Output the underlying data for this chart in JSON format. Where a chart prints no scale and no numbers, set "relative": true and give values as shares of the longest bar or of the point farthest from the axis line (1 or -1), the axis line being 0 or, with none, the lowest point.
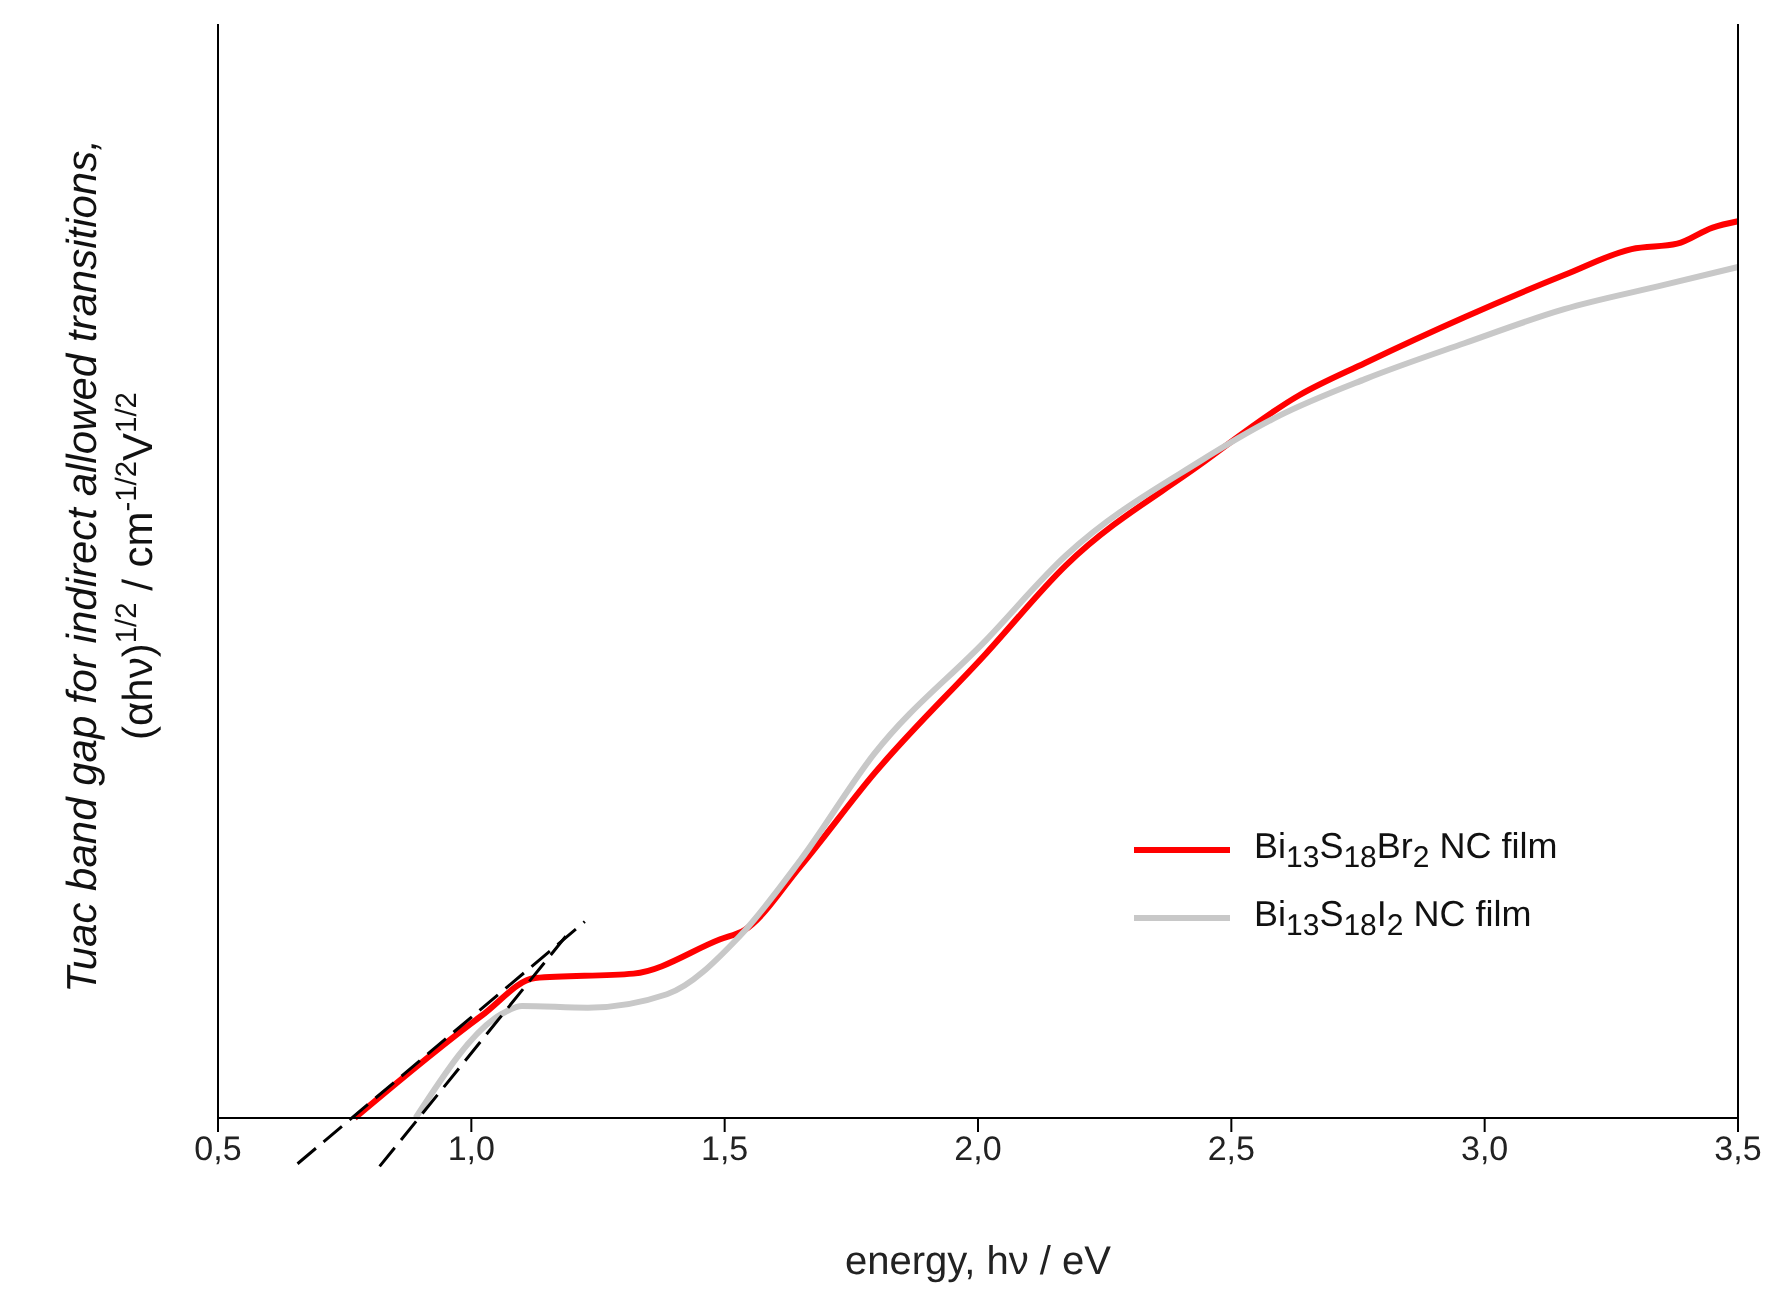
{
  "chart_data": {
    "type": "line",
    "relative": true,
    "xlabel": "energy, hν / eV",
    "ylabel": "Tuac band gap for indirect allowed transitions, (αhν)$^{1/2}$ / cm$^{-1/2}$V$^{1/2}$",
    "xlim": [
      0.5,
      3.5
    ],
    "xticks": [
      {
        "value": 0.5,
        "label": "0,5"
      },
      {
        "value": 1.0,
        "label": "1,0"
      },
      {
        "value": 1.5,
        "label": "1,5"
      },
      {
        "value": 2.0,
        "label": "2,0"
      },
      {
        "value": 2.5,
        "label": "2,5"
      },
      {
        "value": 3.0,
        "label": "3,0"
      },
      {
        "value": 3.5,
        "label": "3,5"
      }
    ],
    "legend": "right",
    "grid": false,
    "marker": "none",
    "series": [
      {
        "name": "Bi$_{13}$S$_{18}$Br$_{2}$ NC film",
        "color": "#ff0000",
        "x": [
          0.77,
          1.02,
          1.126,
          1.32,
          1.49,
          1.54,
          1.65,
          1.795,
          2.016,
          2.173,
          2.437,
          2.634,
          2.764,
          2.96,
          3.157,
          3.29,
          3.38,
          3.45,
          3.5
        ],
        "values": [
          0.0,
          0.114,
          0.156,
          0.161,
          0.199,
          0.21,
          0.281,
          0.384,
          0.518,
          0.616,
          0.728,
          0.806,
          0.842,
          0.893,
          0.94,
          0.969,
          0.975,
          0.993,
          1.0
        ]
      },
      {
        "name": "Bi$_{13}$S$_{18}$I$_{2}$ NC film",
        "color": "#c8c8c8",
        "x": [
          0.89,
          1.06,
          1.1,
          1.23,
          1.386,
          1.53,
          1.65,
          1.795,
          2.016,
          2.173,
          2.437,
          2.594,
          2.764,
          2.96,
          3.157,
          3.354,
          3.5
        ],
        "values": [
          0.0,
          0.116,
          0.125,
          0.123,
          0.138,
          0.203,
          0.288,
          0.406,
          0.533,
          0.627,
          0.732,
          0.783,
          0.824,
          0.864,
          0.902,
          0.929,
          0.949
        ]
      },
      {
        "type": "line",
        "color": "#000000",
        "line_style": "dashed",
        "x": [
          0.657,
          1.224
        ],
        "values": [
          -0.051,
          0.219
        ]
      },
      {
        "type": "line",
        "color": "#000000",
        "line_style": "dashed",
        "x": [
          0.819,
          1.197
        ],
        "values": [
          -0.054,
          0.21
        ]
      }
    ]
  }
}
